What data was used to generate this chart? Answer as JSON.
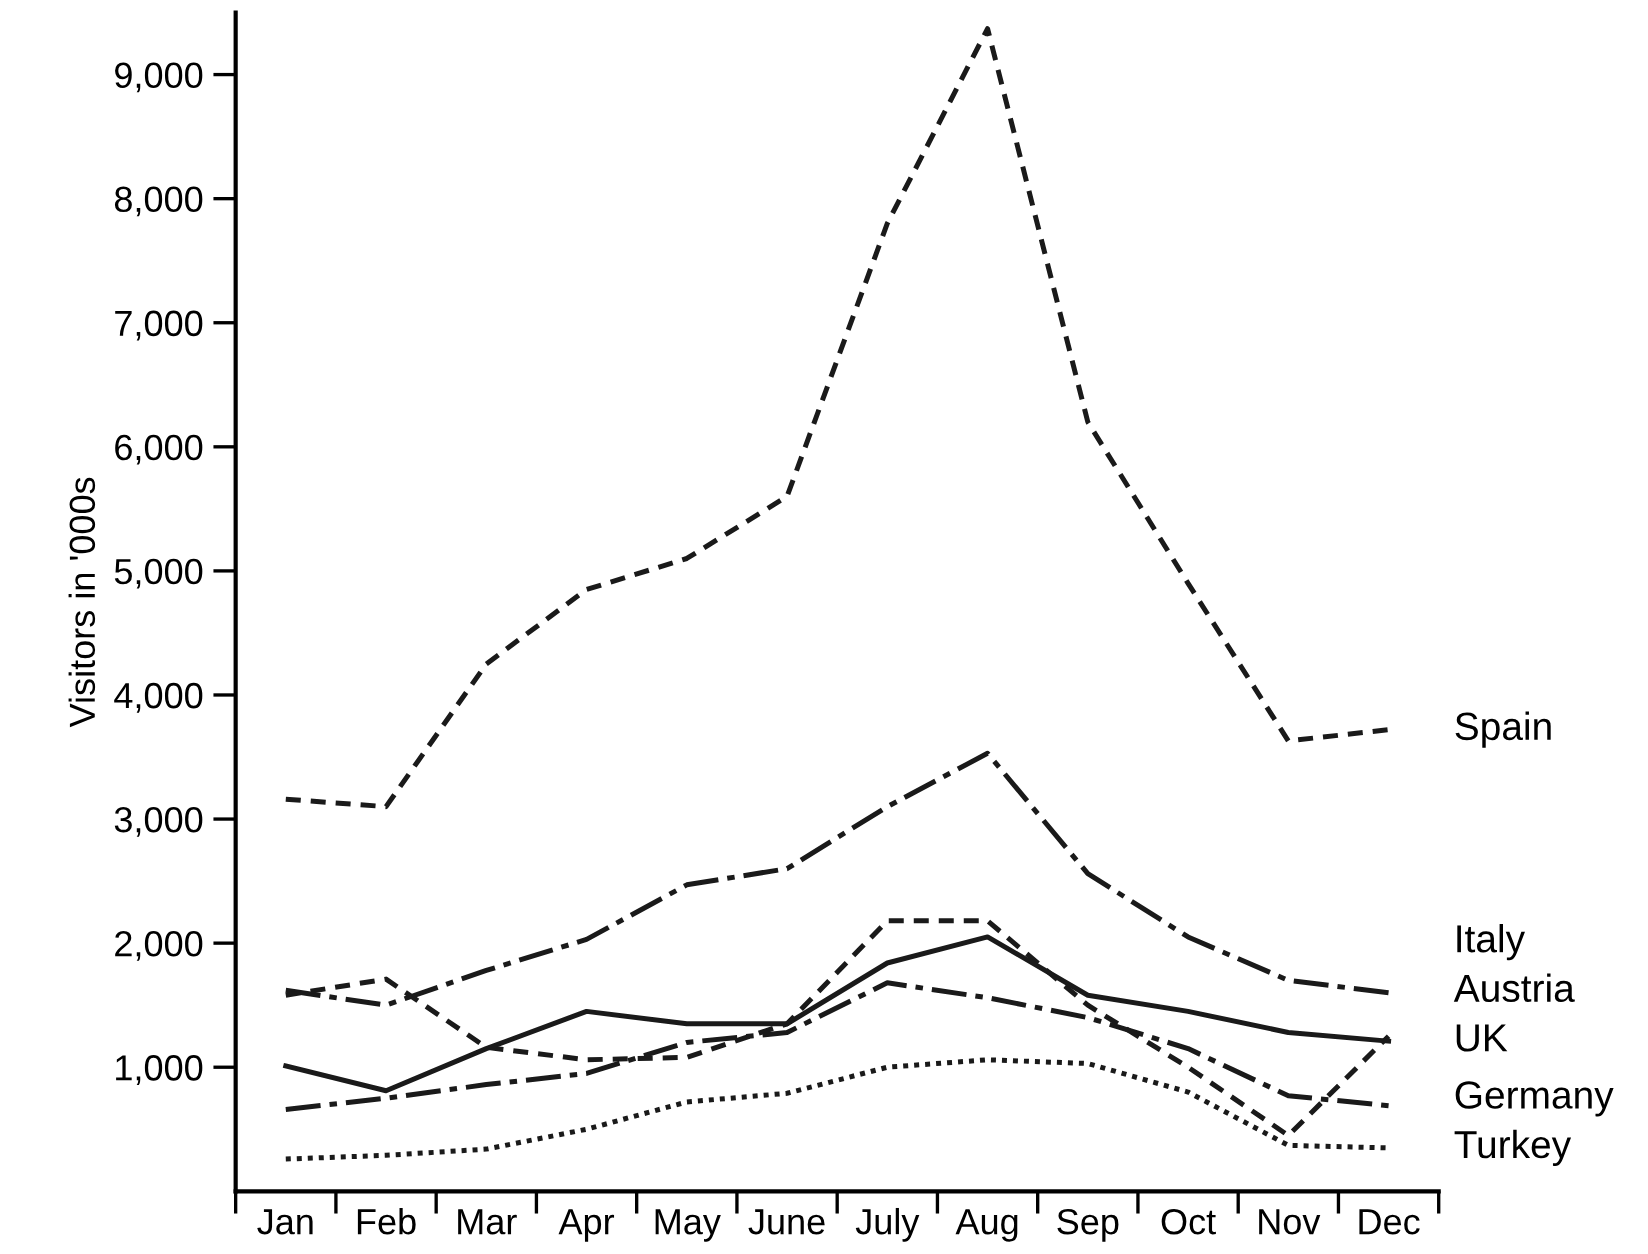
{
  "chart_data": {
    "type": "line",
    "ylabel": "Visitors in '000s",
    "categories": [
      "Jan",
      "Feb",
      "Mar",
      "Apr",
      "May",
      "June",
      "July",
      "Aug",
      "Sep",
      "Oct",
      "Nov",
      "Dec"
    ],
    "ylim": [
      0,
      9500
    ],
    "yticks": [
      {
        "value": 1000,
        "label": "1,000"
      },
      {
        "value": 2000,
        "label": "2,000"
      },
      {
        "value": 3000,
        "label": "3,000"
      },
      {
        "value": 4000,
        "label": "4,000"
      },
      {
        "value": 5000,
        "label": "5,000"
      },
      {
        "value": 6000,
        "label": "6,000"
      },
      {
        "value": 7000,
        "label": "7,000"
      },
      {
        "value": 8000,
        "label": "8,000"
      },
      {
        "value": 9000,
        "label": "9,000"
      }
    ],
    "grid": false,
    "legend": false,
    "marker": "none",
    "series": [
      {
        "name": "Spain",
        "color": "#1a1a1a",
        "line_style": "dashed",
        "values": [
          3160,
          3100,
          4250,
          4850,
          5100,
          5600,
          7800,
          9370,
          6200,
          4900,
          3630,
          3720
        ]
      },
      {
        "name": "Italy",
        "color": "#1a1a1a",
        "line_style": "dashdot",
        "values": [
          1620,
          1500,
          1780,
          2030,
          2470,
          2600,
          3100,
          3530,
          2560,
          2050,
          1700,
          1600
        ]
      },
      {
        "name": "Austria",
        "color": "#1a1a1a",
        "line_style": "dashed",
        "values": [
          1580,
          1710,
          1160,
          1060,
          1080,
          1350,
          2180,
          2180,
          1500,
          1000,
          450,
          1250
        ]
      },
      {
        "name": "UK",
        "color": "#1a1a1a",
        "line_style": "solid",
        "values": [
          1010,
          810,
          1150,
          1450,
          1350,
          1350,
          1840,
          2050,
          1580,
          1450,
          1280,
          1210
        ]
      },
      {
        "name": "Germany",
        "color": "#1a1a1a",
        "line_style": "dashdot",
        "values": [
          660,
          750,
          860,
          950,
          1200,
          1280,
          1680,
          1560,
          1400,
          1150,
          770,
          690
        ]
      },
      {
        "name": "Turkey",
        "color": "#1a1a1a",
        "line_style": "dotted",
        "values": [
          260,
          290,
          340,
          500,
          720,
          790,
          1000,
          1060,
          1030,
          800,
          370,
          350
        ]
      }
    ]
  }
}
